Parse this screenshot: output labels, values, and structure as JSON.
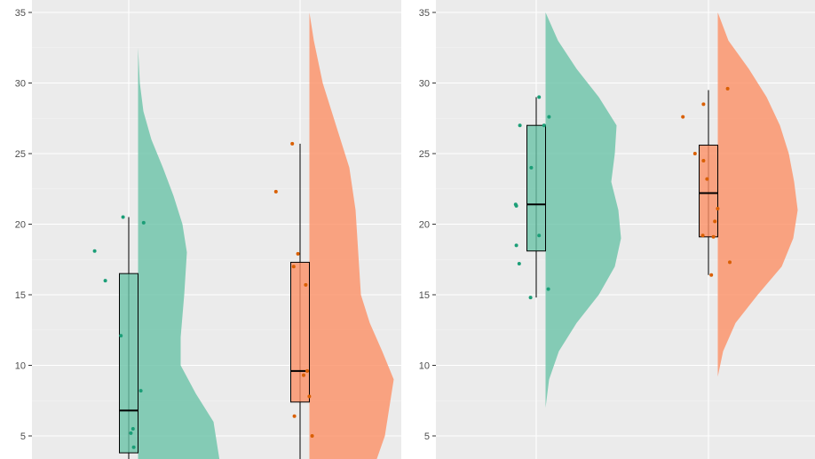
{
  "chart_data": [
    {
      "type": "raincloud",
      "ylim": [
        3.2,
        35
      ],
      "yticks": [
        5,
        10,
        15,
        20,
        25,
        30,
        35
      ],
      "grid": true,
      "series": [
        {
          "color": "#1b9e77",
          "fill": "#66c2a5",
          "box": {
            "lower_whisker": 3.0,
            "q1": 3.8,
            "median": 6.8,
            "q3": 16.5,
            "upper_whisker": 20.5
          },
          "density_range": [
            3.2,
            32.5
          ],
          "density": [
            [
              3.2,
              0.92
            ],
            [
              6.0,
              0.85
            ],
            [
              8.0,
              0.65
            ],
            [
              10.0,
              0.48
            ],
            [
              12.0,
              0.48
            ],
            [
              15.0,
              0.52
            ],
            [
              18.0,
              0.55
            ],
            [
              20.0,
              0.5
            ],
            [
              22.0,
              0.4
            ],
            [
              24.0,
              0.28
            ],
            [
              26.0,
              0.15
            ],
            [
              28.0,
              0.06
            ],
            [
              30.0,
              0.02
            ],
            [
              32.5,
              0.0
            ]
          ],
          "points": [
            [
              -0.48,
              18.1
            ],
            [
              -0.33,
              16.0
            ],
            [
              -0.11,
              12.1
            ],
            [
              -0.08,
              20.5
            ],
            [
              0.03,
              5.2
            ],
            [
              0.06,
              5.5
            ],
            [
              0.07,
              4.2
            ],
            [
              0.17,
              8.2
            ],
            [
              0.21,
              20.1
            ]
          ]
        },
        {
          "color": "#d95f02",
          "fill": "#fc8d62",
          "box": {
            "lower_whisker": 3.0,
            "q1": 7.4,
            "median": 9.6,
            "q3": 17.3,
            "upper_whisker": 25.7
          },
          "density_range": [
            3.2,
            35
          ],
          "density": [
            [
              3.2,
              0.75
            ],
            [
              5.0,
              0.85
            ],
            [
              7.0,
              0.9
            ],
            [
              9.0,
              0.95
            ],
            [
              11.0,
              0.82
            ],
            [
              13.0,
              0.68
            ],
            [
              15.0,
              0.58
            ],
            [
              18.0,
              0.55
            ],
            [
              21.0,
              0.52
            ],
            [
              24.0,
              0.45
            ],
            [
              27.0,
              0.3
            ],
            [
              30.0,
              0.15
            ],
            [
              33.0,
              0.05
            ],
            [
              35.0,
              0.0
            ]
          ],
          "points": [
            [
              -0.34,
              22.3
            ],
            [
              -0.11,
              25.7
            ],
            [
              -0.09,
              17.0
            ],
            [
              -0.08,
              6.4
            ],
            [
              -0.03,
              17.9
            ],
            [
              0.05,
              9.3
            ],
            [
              0.08,
              15.7
            ],
            [
              0.1,
              9.6
            ],
            [
              0.13,
              7.8
            ],
            [
              0.17,
              5.0
            ]
          ]
        }
      ]
    },
    {
      "type": "raincloud",
      "ylim": [
        3.2,
        35
      ],
      "yticks": [
        5,
        10,
        15,
        20,
        25,
        30,
        35
      ],
      "grid": true,
      "series": [
        {
          "color": "#1b9e77",
          "fill": "#66c2a5",
          "box": {
            "lower_whisker": 14.8,
            "q1": 18.1,
            "median": 21.4,
            "q3": 27.0,
            "upper_whisker": 29.0
          },
          "density_range": [
            7.0,
            35
          ],
          "density": [
            [
              7.0,
              0.0
            ],
            [
              9.0,
              0.04
            ],
            [
              11.0,
              0.15
            ],
            [
              13.0,
              0.35
            ],
            [
              15.0,
              0.6
            ],
            [
              17.0,
              0.78
            ],
            [
              19.0,
              0.85
            ],
            [
              21.0,
              0.82
            ],
            [
              23.0,
              0.74
            ],
            [
              25.0,
              0.78
            ],
            [
              27.0,
              0.8
            ],
            [
              29.0,
              0.6
            ],
            [
              31.0,
              0.35
            ],
            [
              33.0,
              0.14
            ],
            [
              35.0,
              0.0
            ]
          ],
          "points": [
            [
              -0.23,
              27.0
            ],
            [
              -0.28,
              21.3
            ],
            [
              -0.29,
              21.4
            ],
            [
              -0.28,
              18.5
            ],
            [
              -0.24,
              17.2
            ],
            [
              -0.07,
              24.0
            ],
            [
              -0.08,
              14.8
            ],
            [
              0.04,
              29.0
            ],
            [
              0.04,
              19.2
            ],
            [
              0.11,
              27.0
            ],
            [
              0.18,
              27.6
            ],
            [
              0.17,
              15.4
            ]
          ]
        },
        {
          "color": "#d95f02",
          "fill": "#fc8d62",
          "box": {
            "lower_whisker": 16.4,
            "q1": 19.1,
            "median": 22.2,
            "q3": 25.6,
            "upper_whisker": 29.5
          },
          "density_range": [
            9.2,
            35
          ],
          "density": [
            [
              9.2,
              0.0
            ],
            [
              11.0,
              0.06
            ],
            [
              13.0,
              0.2
            ],
            [
              15.0,
              0.45
            ],
            [
              17.0,
              0.72
            ],
            [
              19.0,
              0.85
            ],
            [
              21.0,
              0.9
            ],
            [
              23.0,
              0.86
            ],
            [
              25.0,
              0.8
            ],
            [
              27.0,
              0.7
            ],
            [
              29.0,
              0.55
            ],
            [
              31.0,
              0.35
            ],
            [
              33.0,
              0.12
            ],
            [
              35.0,
              0.0
            ]
          ],
          "points": [
            [
              -0.36,
              27.6
            ],
            [
              -0.19,
              25.0
            ],
            [
              -0.08,
              19.2
            ],
            [
              -0.07,
              24.5
            ],
            [
              -0.07,
              28.5
            ],
            [
              -0.02,
              23.2
            ],
            [
              0.04,
              16.4
            ],
            [
              0.09,
              20.2
            ],
            [
              0.07,
              19.1
            ],
            [
              0.13,
              21.1
            ],
            [
              0.27,
              29.6
            ],
            [
              0.3,
              17.3
            ]
          ]
        }
      ]
    }
  ]
}
